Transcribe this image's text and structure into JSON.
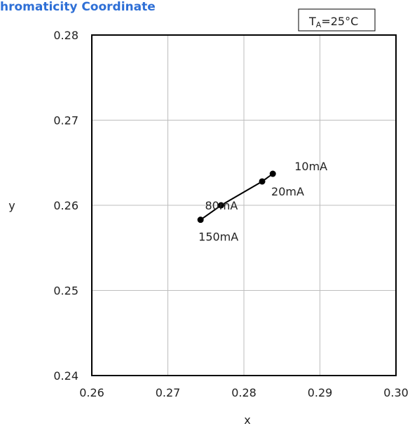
{
  "chart_data": {
    "type": "scatter",
    "title": "hromaticity Coordinate",
    "xlabel": "x",
    "ylabel": "y",
    "xlim": [
      0.26,
      0.3
    ],
    "ylim": [
      0.24,
      0.28
    ],
    "x_ticks": [
      "0.26",
      "0.27",
      "0.28",
      "0.29",
      "0.30"
    ],
    "y_ticks": [
      "0.24",
      "0.25",
      "0.26",
      "0.27",
      "0.28"
    ],
    "grid": true,
    "condition": {
      "main": "T",
      "sub": "A",
      "rest": "=25°C"
    },
    "series": [
      {
        "points": [
          {
            "x": 0.2838,
            "y": 0.2637,
            "label": "10mA"
          },
          {
            "x": 0.2824,
            "y": 0.2628,
            "label": "20mA"
          },
          {
            "x": 0.277,
            "y": 0.26,
            "label": "80mA"
          },
          {
            "x": 0.2743,
            "y": 0.2583,
            "label": "150mA"
          }
        ]
      }
    ]
  }
}
